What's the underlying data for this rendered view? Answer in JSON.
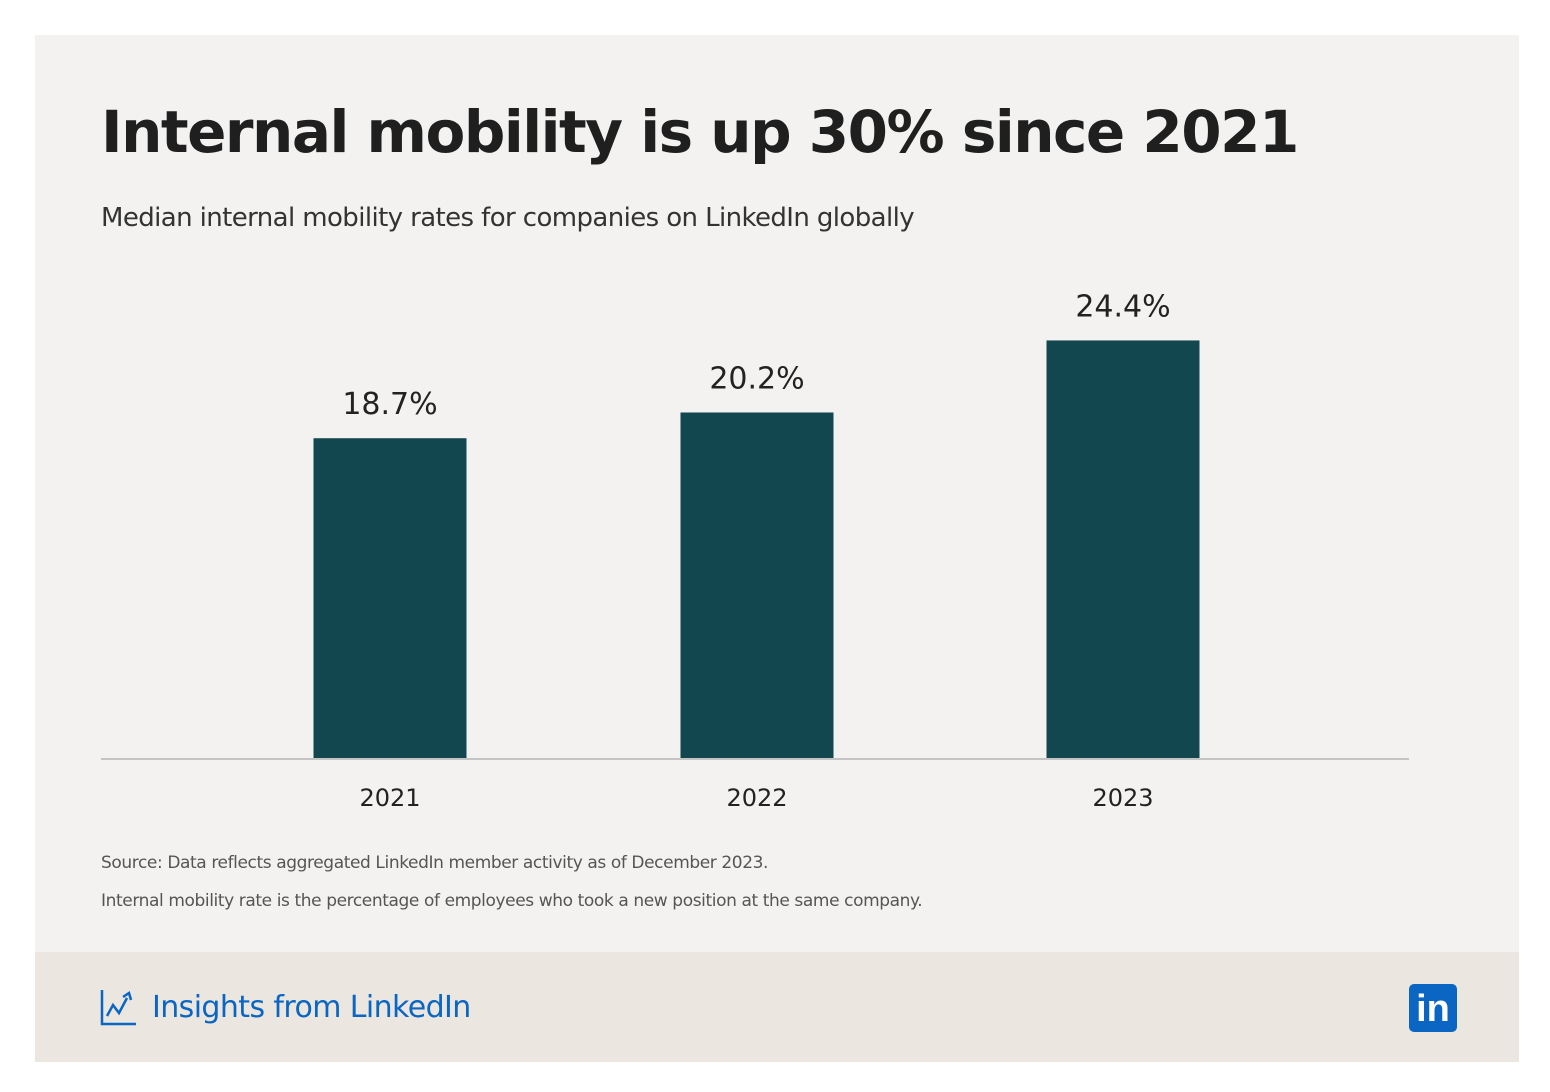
{
  "chart_data": {
    "type": "bar",
    "title": "Internal mobility is up 30% since 2021",
    "subtitle": "Median internal mobility rates for companies on LinkedIn globally",
    "categories": [
      "2021",
      "2022",
      "2023"
    ],
    "values": [
      18.7,
      20.2,
      24.4
    ],
    "data_labels": [
      "18.7%",
      "20.2%",
      "24.4%"
    ],
    "xlabel": "",
    "ylabel": "",
    "ylim": [
      0,
      26
    ],
    "grid": false,
    "bar_color": "#12474f"
  },
  "notes": [
    "Source: Data reflects aggregated LinkedIn member activity as of December 2023.",
    "Internal mobility rate is the percentage of employees who took a new position at the same company."
  ],
  "footer": {
    "brand_label": "Insights from LinkedIn",
    "brand_icon": "trend-chart-icon",
    "logo_text": "in",
    "brand_color": "#0a66c2"
  }
}
